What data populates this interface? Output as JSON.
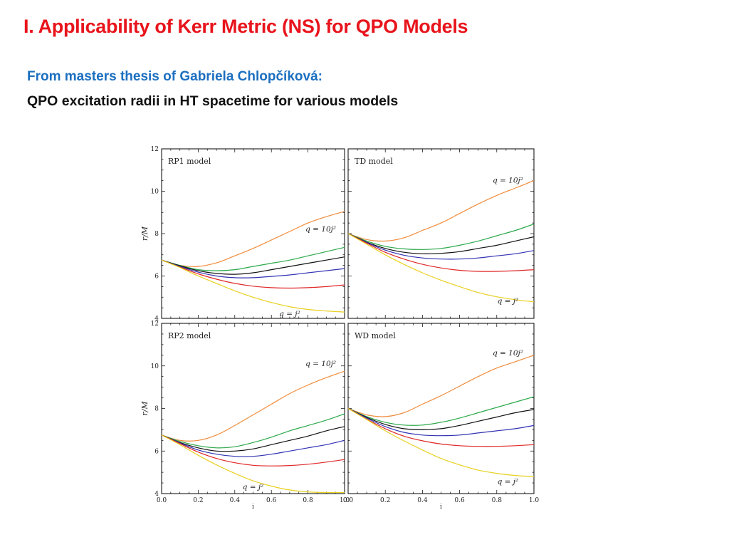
{
  "slide": {
    "title": "I. Applicability of Kerr Metric (NS) for QPO Models",
    "subtitle": "From masters thesis of Gabriela Chlopčíková:",
    "caption": "QPO excitation radii in HT spacetime for various models"
  },
  "colors": {
    "title": "#e8141c",
    "subtitle": "#1c6fc0",
    "caption": "#111111"
  },
  "chart_data": [
    {
      "type": "line",
      "title": "RP1 model",
      "xlabel": "",
      "ylabel": "r/M",
      "xlim": [
        0,
        1
      ],
      "ylim": [
        4,
        12
      ],
      "yticks": [
        "4",
        "6",
        "8",
        "10",
        "12"
      ],
      "annotations": [
        {
          "text": "q = 10j²",
          "x": 0.87,
          "y": 8.1
        },
        {
          "text": "q = j²",
          "x": 0.7,
          "y": 4.1
        }
      ],
      "series": [
        {
          "color": "#f08c3c",
          "x": [
            0,
            0.1,
            0.2,
            0.3,
            0.4,
            0.5,
            0.6,
            0.7,
            0.8,
            0.9,
            1.0
          ],
          "y": [
            6.75,
            6.5,
            6.45,
            6.62,
            6.95,
            7.3,
            7.7,
            8.1,
            8.5,
            8.8,
            9.05
          ]
        },
        {
          "color": "#2ca84a",
          "x": [
            0,
            0.1,
            0.2,
            0.3,
            0.4,
            0.5,
            0.6,
            0.7,
            0.8,
            0.9,
            1.0
          ],
          "y": [
            6.75,
            6.5,
            6.3,
            6.25,
            6.3,
            6.45,
            6.6,
            6.75,
            6.95,
            7.15,
            7.35
          ]
        },
        {
          "color": "#111111",
          "x": [
            0,
            0.1,
            0.2,
            0.3,
            0.4,
            0.5,
            0.6,
            0.7,
            0.8,
            0.9,
            1.0
          ],
          "y": [
            6.75,
            6.48,
            6.25,
            6.12,
            6.08,
            6.15,
            6.3,
            6.45,
            6.6,
            6.75,
            6.9
          ]
        },
        {
          "color": "#3232b4",
          "x": [
            0,
            0.1,
            0.2,
            0.3,
            0.4,
            0.5,
            0.6,
            0.7,
            0.8,
            0.9,
            1.0
          ],
          "y": [
            6.75,
            6.45,
            6.18,
            6.0,
            5.92,
            5.92,
            5.98,
            6.05,
            6.15,
            6.25,
            6.35
          ]
        },
        {
          "color": "#e02828",
          "x": [
            0,
            0.1,
            0.2,
            0.3,
            0.4,
            0.5,
            0.6,
            0.7,
            0.8,
            0.9,
            1.0
          ],
          "y": [
            6.75,
            6.42,
            6.1,
            5.85,
            5.65,
            5.52,
            5.45,
            5.43,
            5.45,
            5.5,
            5.58
          ]
        },
        {
          "color": "#e8d020",
          "x": [
            0,
            0.1,
            0.2,
            0.3,
            0.4,
            0.5,
            0.6,
            0.7,
            0.8,
            0.9,
            1.0
          ],
          "y": [
            6.75,
            6.4,
            6.0,
            5.65,
            5.3,
            5.0,
            4.75,
            4.55,
            4.42,
            4.35,
            4.3
          ]
        }
      ]
    },
    {
      "type": "line",
      "title": "TD model",
      "xlabel": "",
      "ylabel": "",
      "xlim": [
        0,
        1
      ],
      "ylim": [
        4,
        12
      ],
      "annotations": [
        {
          "text": "q = 10j²",
          "x": 0.86,
          "y": 10.4
        },
        {
          "text": "q = j²",
          "x": 0.86,
          "y": 4.7
        }
      ],
      "series": [
        {
          "color": "#f08c3c",
          "x": [
            0,
            0.1,
            0.2,
            0.3,
            0.4,
            0.5,
            0.6,
            0.7,
            0.8,
            0.9,
            1.0
          ],
          "y": [
            8.0,
            7.72,
            7.65,
            7.8,
            8.15,
            8.5,
            8.95,
            9.4,
            9.8,
            10.15,
            10.5
          ]
        },
        {
          "color": "#2ca84a",
          "x": [
            0,
            0.1,
            0.2,
            0.3,
            0.4,
            0.5,
            0.6,
            0.7,
            0.8,
            0.9,
            1.0
          ],
          "y": [
            8.0,
            7.65,
            7.4,
            7.28,
            7.25,
            7.3,
            7.45,
            7.65,
            7.9,
            8.15,
            8.45
          ]
        },
        {
          "color": "#111111",
          "x": [
            0,
            0.1,
            0.2,
            0.3,
            0.4,
            0.5,
            0.6,
            0.7,
            0.8,
            0.9,
            1.0
          ],
          "y": [
            8.0,
            7.6,
            7.3,
            7.12,
            7.05,
            7.07,
            7.15,
            7.3,
            7.45,
            7.65,
            7.85
          ]
        },
        {
          "color": "#3232b4",
          "x": [
            0,
            0.1,
            0.2,
            0.3,
            0.4,
            0.5,
            0.6,
            0.7,
            0.8,
            0.9,
            1.0
          ],
          "y": [
            8.0,
            7.58,
            7.22,
            6.98,
            6.85,
            6.8,
            6.8,
            6.85,
            6.95,
            7.05,
            7.2
          ]
        },
        {
          "color": "#e02828",
          "x": [
            0,
            0.1,
            0.2,
            0.3,
            0.4,
            0.5,
            0.6,
            0.7,
            0.8,
            0.9,
            1.0
          ],
          "y": [
            8.0,
            7.55,
            7.12,
            6.8,
            6.55,
            6.38,
            6.27,
            6.22,
            6.22,
            6.25,
            6.3
          ]
        },
        {
          "color": "#e8d020",
          "x": [
            0,
            0.1,
            0.2,
            0.3,
            0.4,
            0.5,
            0.6,
            0.7,
            0.8,
            0.9,
            1.0
          ],
          "y": [
            8.0,
            7.5,
            7.0,
            6.55,
            6.15,
            5.8,
            5.5,
            5.22,
            5.02,
            4.88,
            4.78
          ]
        }
      ]
    },
    {
      "type": "line",
      "title": "RP2 model",
      "xlabel": "i",
      "ylabel": "r/M",
      "xlim": [
        0,
        1
      ],
      "ylim": [
        4,
        12
      ],
      "xticks": [
        "0.0",
        "0.2",
        "0.4",
        "0.6",
        "0.8",
        "1.0"
      ],
      "yticks": [
        "4",
        "6",
        "8",
        "10",
        "12"
      ],
      "annotations": [
        {
          "text": "q = 10j²",
          "x": 0.87,
          "y": 10.0
        },
        {
          "text": "q = j²",
          "x": 0.5,
          "y": 4.2
        }
      ],
      "series": [
        {
          "color": "#f08c3c",
          "x": [
            0,
            0.1,
            0.2,
            0.3,
            0.4,
            0.5,
            0.6,
            0.7,
            0.8,
            0.9,
            1.0
          ],
          "y": [
            6.75,
            6.5,
            6.5,
            6.75,
            7.2,
            7.7,
            8.2,
            8.7,
            9.1,
            9.45,
            9.75
          ]
        },
        {
          "color": "#2ca84a",
          "x": [
            0,
            0.1,
            0.2,
            0.3,
            0.4,
            0.5,
            0.6,
            0.7,
            0.8,
            0.9,
            1.0
          ],
          "y": [
            6.75,
            6.45,
            6.25,
            6.15,
            6.2,
            6.4,
            6.65,
            6.95,
            7.2,
            7.45,
            7.75
          ]
        },
        {
          "color": "#111111",
          "x": [
            0,
            0.1,
            0.2,
            0.3,
            0.4,
            0.5,
            0.6,
            0.7,
            0.8,
            0.9,
            1.0
          ],
          "y": [
            6.75,
            6.4,
            6.15,
            6.0,
            6.0,
            6.1,
            6.3,
            6.5,
            6.7,
            6.95,
            7.15
          ]
        },
        {
          "color": "#3232b4",
          "x": [
            0,
            0.1,
            0.2,
            0.3,
            0.4,
            0.5,
            0.6,
            0.7,
            0.8,
            0.9,
            1.0
          ],
          "y": [
            6.75,
            6.38,
            6.05,
            5.85,
            5.75,
            5.75,
            5.85,
            6.0,
            6.15,
            6.3,
            6.5
          ]
        },
        {
          "color": "#e02828",
          "x": [
            0,
            0.1,
            0.2,
            0.3,
            0.4,
            0.5,
            0.6,
            0.7,
            0.8,
            0.9,
            1.0
          ],
          "y": [
            6.75,
            6.35,
            5.95,
            5.65,
            5.45,
            5.33,
            5.3,
            5.32,
            5.38,
            5.48,
            5.6
          ]
        },
        {
          "color": "#e8d020",
          "x": [
            0,
            0.1,
            0.2,
            0.3,
            0.4,
            0.5,
            0.6,
            0.7,
            0.8,
            0.9,
            1.0
          ],
          "y": [
            6.75,
            6.3,
            5.8,
            5.35,
            4.95,
            4.6,
            4.35,
            4.17,
            4.08,
            4.05,
            4.05
          ]
        }
      ]
    },
    {
      "type": "line",
      "title": "WD model",
      "xlabel": "i",
      "ylabel": "",
      "xlim": [
        0,
        1
      ],
      "ylim": [
        4,
        12
      ],
      "xticks": [
        "0.0",
        "0.2",
        "0.4",
        "0.6",
        "0.8",
        "1.0"
      ],
      "annotations": [
        {
          "text": "q = 10j²",
          "x": 0.86,
          "y": 10.5
        },
        {
          "text": "q = j²",
          "x": 0.86,
          "y": 4.45
        }
      ],
      "series": [
        {
          "color": "#f08c3c",
          "x": [
            0,
            0.1,
            0.2,
            0.3,
            0.4,
            0.5,
            0.6,
            0.7,
            0.8,
            0.9,
            1.0
          ],
          "y": [
            8.0,
            7.7,
            7.62,
            7.8,
            8.2,
            8.6,
            9.05,
            9.5,
            9.9,
            10.2,
            10.5
          ]
        },
        {
          "color": "#2ca84a",
          "x": [
            0,
            0.1,
            0.2,
            0.3,
            0.4,
            0.5,
            0.6,
            0.7,
            0.8,
            0.9,
            1.0
          ],
          "y": [
            8.0,
            7.62,
            7.35,
            7.22,
            7.22,
            7.35,
            7.55,
            7.8,
            8.05,
            8.3,
            8.55
          ]
        },
        {
          "color": "#111111",
          "x": [
            0,
            0.1,
            0.2,
            0.3,
            0.4,
            0.5,
            0.6,
            0.7,
            0.8,
            0.9,
            1.0
          ],
          "y": [
            8.0,
            7.58,
            7.25,
            7.05,
            7.0,
            7.05,
            7.2,
            7.4,
            7.6,
            7.8,
            7.95
          ]
        },
        {
          "color": "#3232b4",
          "x": [
            0,
            0.1,
            0.2,
            0.3,
            0.4,
            0.5,
            0.6,
            0.7,
            0.8,
            0.9,
            1.0
          ],
          "y": [
            8.0,
            7.55,
            7.15,
            6.88,
            6.75,
            6.72,
            6.75,
            6.85,
            6.95,
            7.05,
            7.2
          ]
        },
        {
          "color": "#e02828",
          "x": [
            0,
            0.1,
            0.2,
            0.3,
            0.4,
            0.5,
            0.6,
            0.7,
            0.8,
            0.9,
            1.0
          ],
          "y": [
            8.0,
            7.5,
            7.05,
            6.7,
            6.48,
            6.33,
            6.25,
            6.22,
            6.22,
            6.25,
            6.3
          ]
        },
        {
          "color": "#e8d020",
          "x": [
            0,
            0.1,
            0.2,
            0.3,
            0.4,
            0.5,
            0.6,
            0.7,
            0.8,
            0.9,
            1.0
          ],
          "y": [
            8.0,
            7.48,
            6.95,
            6.48,
            6.05,
            5.65,
            5.35,
            5.1,
            4.95,
            4.85,
            4.8
          ]
        }
      ]
    }
  ]
}
